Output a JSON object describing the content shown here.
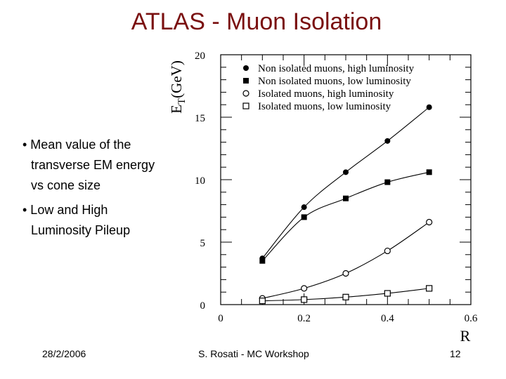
{
  "slide": {
    "title": "ATLAS - Muon Isolation",
    "bullets": [
      [
        "• Mean value of the",
        "transverse EM energy",
        "vs cone size"
      ],
      [
        "• Low and High",
        "Luminosity Pileup"
      ]
    ],
    "footer": {
      "date": "28/2/2006",
      "center": "S. Rosati - MC Workshop",
      "page": "12"
    },
    "title_color": "#7a1010"
  },
  "chart_data": {
    "type": "line",
    "xlabel": "R",
    "ylabel_main": "E",
    "ylabel_sub": "T",
    "ylabel_unit": "(GeV)",
    "xlim": [
      0,
      0.6
    ],
    "ylim": [
      0,
      20
    ],
    "xticks": [
      0,
      0.2,
      0.4,
      0.6
    ],
    "xtick_labels": [
      "0",
      "0.2",
      "0.4",
      "0.6"
    ],
    "yticks": [
      0,
      5,
      10,
      15,
      20
    ],
    "ytick_labels": [
      "0",
      "5",
      "10",
      "15",
      "20"
    ],
    "grid": false,
    "legend_position": "top-right",
    "x": [
      0.1,
      0.2,
      0.3,
      0.4,
      0.5
    ],
    "series": [
      {
        "name": "Non isolated muons, high luminosity",
        "marker": "filled-circle",
        "values": [
          3.7,
          7.8,
          10.6,
          13.1,
          15.8
        ]
      },
      {
        "name": "Non isolated muons, low  luminosity",
        "marker": "filled-square",
        "values": [
          3.5,
          7.0,
          8.5,
          9.8,
          10.6
        ]
      },
      {
        "name": "Isolated muons, high luminosity",
        "marker": "open-circle",
        "values": [
          0.5,
          1.3,
          2.5,
          4.3,
          6.6
        ]
      },
      {
        "name": "Isolated muons, low  luminosity",
        "marker": "open-square",
        "values": [
          0.3,
          0.4,
          0.6,
          0.9,
          1.3
        ]
      }
    ]
  }
}
